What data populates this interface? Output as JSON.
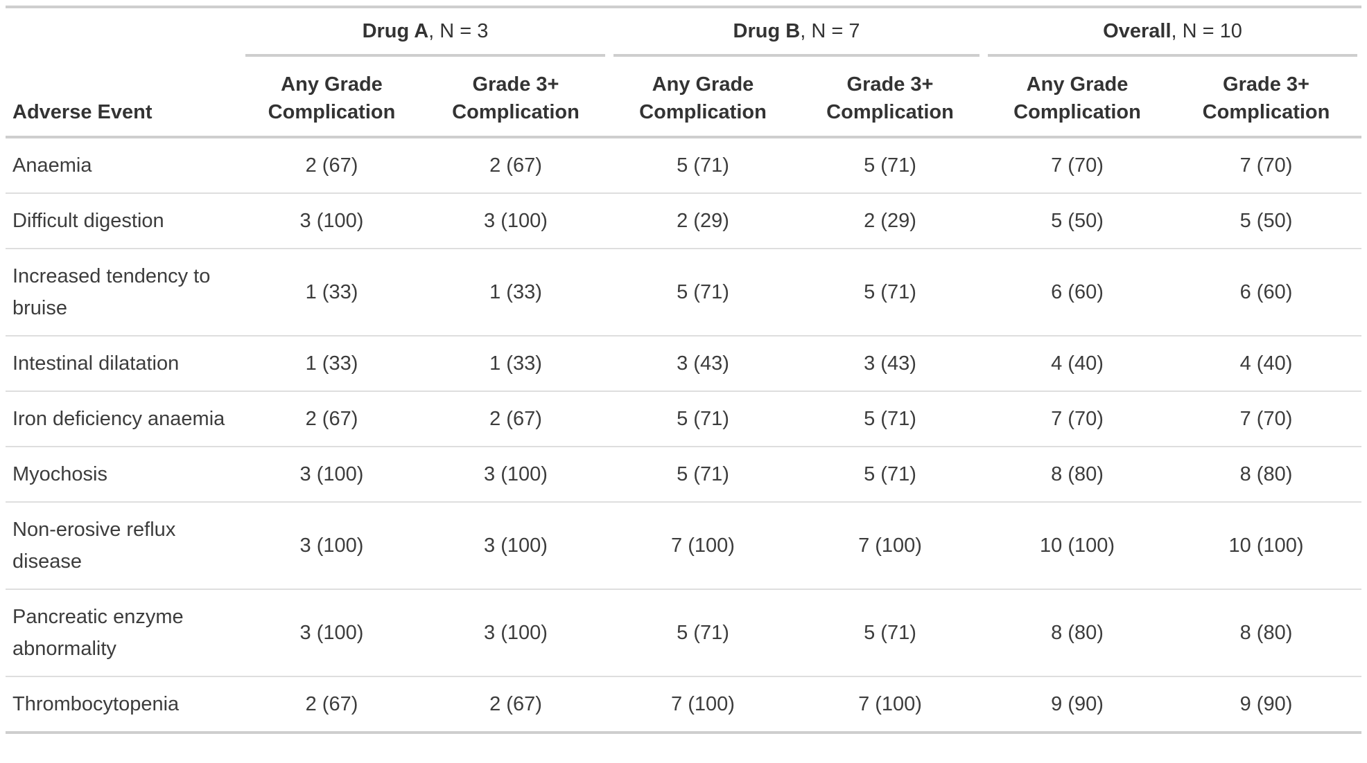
{
  "table": {
    "stub_header": "Adverse Event",
    "spanners": [
      {
        "label": "Drug A",
        "suffix": ", N = 3"
      },
      {
        "label": "Drug B",
        "suffix": ", N = 7"
      },
      {
        "label": "Overall",
        "suffix": ", N = 10"
      }
    ],
    "column_labels": [
      "Any Grade Complication",
      "Grade 3+ Complication",
      "Any Grade Complication",
      "Grade 3+ Complication",
      "Any Grade Complication",
      "Grade 3+ Complication"
    ],
    "rows": [
      {
        "label": "Anaemia",
        "values": [
          "2 (67)",
          "2 (67)",
          "5 (71)",
          "5 (71)",
          "7 (70)",
          "7 (70)"
        ]
      },
      {
        "label": "Difficult digestion",
        "values": [
          "3 (100)",
          "3 (100)",
          "2 (29)",
          "2 (29)",
          "5 (50)",
          "5 (50)"
        ]
      },
      {
        "label": "Increased tendency to bruise",
        "values": [
          "1 (33)",
          "1 (33)",
          "5 (71)",
          "5 (71)",
          "6 (60)",
          "6 (60)"
        ]
      },
      {
        "label": "Intestinal dilatation",
        "values": [
          "1 (33)",
          "1 (33)",
          "3 (43)",
          "3 (43)",
          "4 (40)",
          "4 (40)"
        ]
      },
      {
        "label": "Iron deficiency anaemia",
        "values": [
          "2 (67)",
          "2 (67)",
          "5 (71)",
          "5 (71)",
          "7 (70)",
          "7 (70)"
        ]
      },
      {
        "label": "Myochosis",
        "values": [
          "3 (100)",
          "3 (100)",
          "5 (71)",
          "5 (71)",
          "8 (80)",
          "8 (80)"
        ]
      },
      {
        "label": "Non-erosive reflux disease",
        "values": [
          "3 (100)",
          "3 (100)",
          "7 (100)",
          "7 (100)",
          "10 (100)",
          "10 (100)"
        ]
      },
      {
        "label": "Pancreatic enzyme abnormality",
        "values": [
          "3 (100)",
          "3 (100)",
          "5 (71)",
          "5 (71)",
          "8 (80)",
          "8 (80)"
        ]
      },
      {
        "label": "Thrombocytopenia",
        "values": [
          "2 (67)",
          "2 (67)",
          "7 (100)",
          "7 (100)",
          "9 (90)",
          "9 (90)"
        ]
      }
    ]
  },
  "colors": {
    "border_strong": "#cecece",
    "border_light": "#dedede",
    "header_text": "#333333",
    "body_text": "#3c3c3c",
    "background": "#ffffff"
  }
}
